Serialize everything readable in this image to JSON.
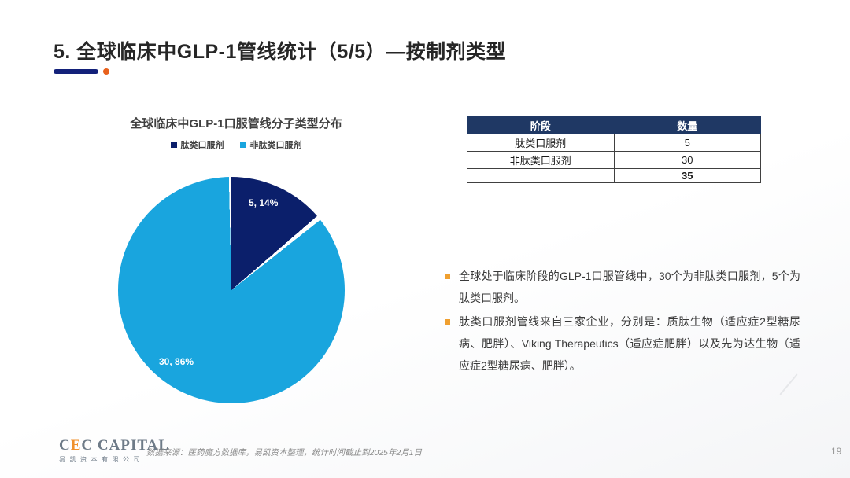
{
  "slide": {
    "title": "5. 全球临床中GLP-1管线统计（5/5）—按制剂类型",
    "page_number": "19"
  },
  "chart_data": {
    "type": "pie",
    "title": "全球临床中GLP-1口服管线分子类型分布",
    "categories": [
      "肽类口服剂",
      "非肽类口服剂"
    ],
    "values": [
      5,
      30
    ],
    "percentages": [
      14,
      86
    ],
    "labels": [
      "5, 14%",
      "30, 86%"
    ],
    "colors": [
      "#0B1F6B",
      "#19A5DE"
    ],
    "legend_position": "top",
    "start_angle": "12 o'clock, clockwise",
    "annotations": "slice labels show count and percent inside slices"
  },
  "table": {
    "headers": [
      "阶段",
      "数量"
    ],
    "rows": [
      [
        "肽类口服剂",
        "5"
      ],
      [
        "非肽类口服剂",
        "30"
      ],
      [
        "",
        "35"
      ]
    ],
    "header_bg": "#1F3864"
  },
  "notes": [
    "全球处于临床阶段的GLP-1口服管线中，30个为非肽类口服剂，5个为肽类口服剂。",
    "肽类口服剂管线来自三家企业，分别是：质肽生物（适应症2型糖尿病、肥胖）、Viking Therapeutics（适应症肥胖）以及先为达生物（适应症2型糖尿病、肥胖）。"
  ],
  "footer": {
    "logo_prefix": "C",
    "logo_accent": "E",
    "logo_suffix": "C CAPITAL",
    "logo_sub": "易凯资本有限公司",
    "source": "数据来源：医药魔方数据库，易凯资本整理，统计时间截止到2025年2月1日"
  },
  "ui_colors": {
    "title_underline": "#13217A",
    "title_dot": "#E8611C",
    "bullet": "#F0A030",
    "table_header": "#1F3864"
  }
}
